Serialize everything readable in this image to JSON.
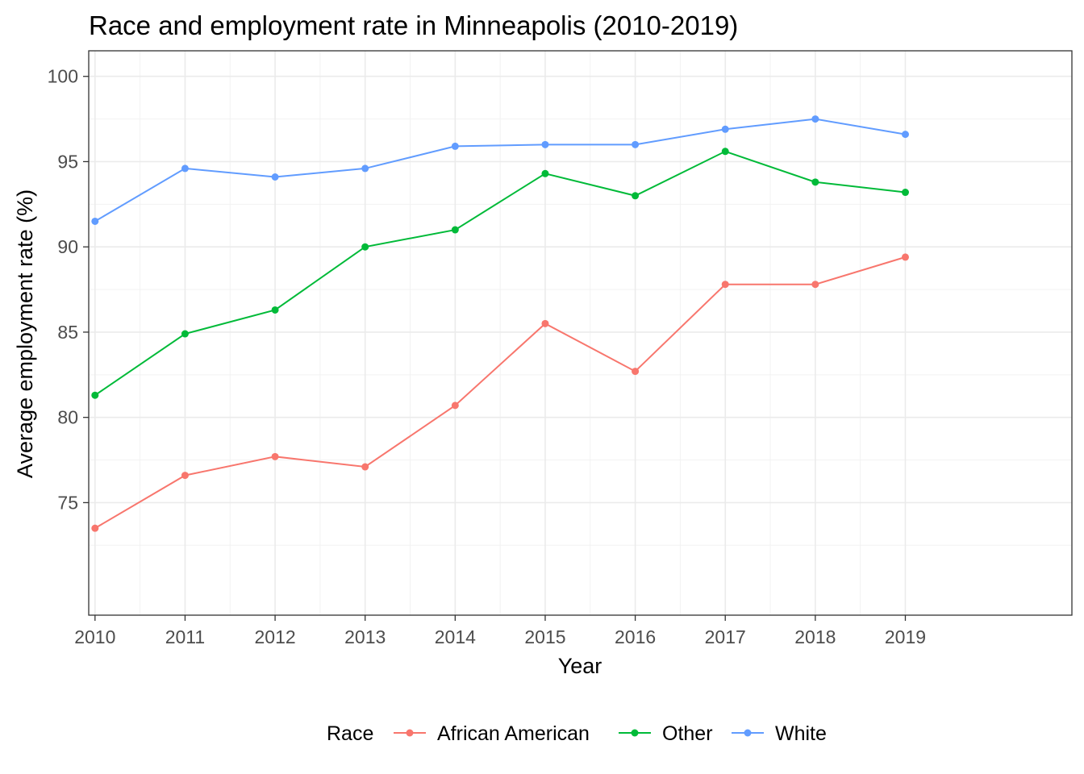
{
  "chart_data": {
    "type": "line",
    "title": "Race and employment rate in Minneapolis (2010-2019)",
    "xlabel": "Year",
    "ylabel": "Average employment rate (%)",
    "x": [
      2010,
      2011,
      2012,
      2013,
      2014,
      2015,
      2016,
      2017,
      2018,
      2019
    ],
    "x_tick_labels": [
      "2010",
      "2011",
      "2012",
      "2013",
      "2014",
      "2015",
      "2016",
      "2017",
      "2018",
      "2019"
    ],
    "y_ticks": [
      75,
      80,
      85,
      90,
      95,
      100
    ],
    "y_tick_labels": [
      "75",
      "80",
      "85",
      "90",
      "95",
      "100"
    ],
    "xlim": [
      2009.93,
      2020.85
    ],
    "ylim": [
      68.4,
      101.5
    ],
    "grid": true,
    "legend": {
      "title": "Race",
      "position": "bottom"
    },
    "series": [
      {
        "name": "African American",
        "color": "#F8766D",
        "values": [
          73.5,
          76.6,
          77.7,
          77.1,
          80.7,
          85.5,
          82.7,
          87.8,
          87.8,
          89.4
        ]
      },
      {
        "name": "Other",
        "color": "#00BA38",
        "values": [
          81.3,
          84.9,
          86.3,
          90.0,
          91.0,
          94.3,
          93.0,
          95.6,
          93.8,
          93.2
        ]
      },
      {
        "name": "White",
        "color": "#619CFF",
        "values": [
          91.5,
          94.6,
          94.1,
          94.6,
          95.9,
          96.0,
          96.0,
          96.9,
          97.5,
          96.6
        ]
      }
    ]
  }
}
